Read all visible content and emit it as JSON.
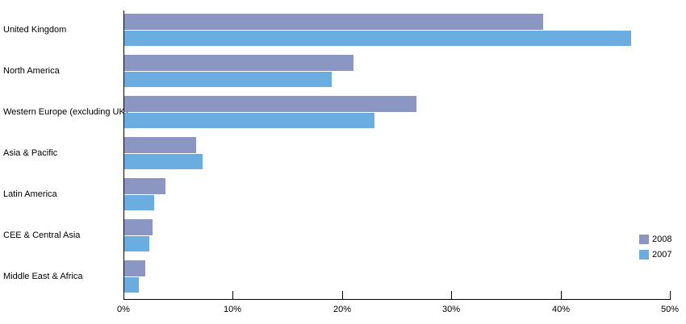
{
  "chart_data": {
    "type": "bar",
    "orientation": "horizontal",
    "title": "",
    "xlabel": "",
    "ylabel": "",
    "categories": [
      "United Kingdom",
      "North America",
      "Western Europe (excluding UK)",
      "Asia & Pacific",
      "Latin America",
      "CEE & Central Asia",
      "Middle East & Africa"
    ],
    "series": [
      {
        "name": "2008",
        "color": "#8C96C2",
        "values": [
          38.3,
          21.0,
          26.7,
          6.6,
          3.8,
          2.6,
          1.9
        ]
      },
      {
        "name": "2007",
        "color": "#6BADE0",
        "values": [
          46.4,
          19.0,
          22.9,
          7.2,
          2.7,
          2.3,
          1.3
        ]
      }
    ],
    "xlim": [
      0,
      50
    ],
    "x_tick_labels": [
      "0%",
      "10%",
      "20%",
      "30%",
      "40%",
      "50%"
    ],
    "x_tick_values": [
      0,
      10,
      20,
      30,
      40,
      50
    ],
    "grid": false,
    "legend_position": "middle-right",
    "axis_color": "#000000",
    "background_color": "#ffffff"
  }
}
